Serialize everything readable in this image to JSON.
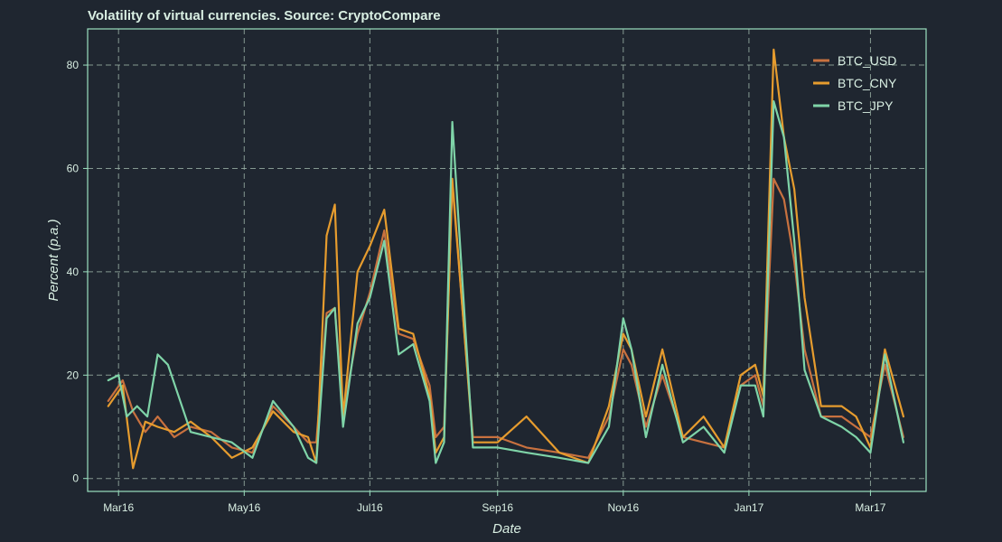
{
  "chart_data": {
    "type": "line",
    "title": "Volatility of virtual currencies. Source: CryptoCompare",
    "xlabel": "Date",
    "ylabel": "Percent (p.a.)",
    "ylim": [
      -2.5,
      87
    ],
    "xlim": [
      "2016-02-15",
      "2017-03-28"
    ],
    "grid": true,
    "legend_position": "top-right",
    "x_ticks": [
      {
        "date": "2016-03-01",
        "label": "Mar16"
      },
      {
        "date": "2016-05-01",
        "label": "May16"
      },
      {
        "date": "2016-07-01",
        "label": "Jul16"
      },
      {
        "date": "2016-09-01",
        "label": "Sep16"
      },
      {
        "date": "2016-11-01",
        "label": "Nov16"
      },
      {
        "date": "2017-01-01",
        "label": "Jan17"
      },
      {
        "date": "2017-03-01",
        "label": "Mar17"
      }
    ],
    "y_ticks": [
      0,
      20,
      40,
      60,
      80
    ],
    "series": [
      {
        "name": "BTC_USD",
        "color": "#c8713f",
        "x": [
          "2016-02-25",
          "2016-03-03",
          "2016-03-08",
          "2016-03-14",
          "2016-03-20",
          "2016-03-28",
          "2016-04-05",
          "2016-04-15",
          "2016-04-25",
          "2016-05-05",
          "2016-05-15",
          "2016-05-25",
          "2016-06-01",
          "2016-06-05",
          "2016-06-10",
          "2016-06-14",
          "2016-06-18",
          "2016-06-25",
          "2016-07-01",
          "2016-07-08",
          "2016-07-15",
          "2016-07-22",
          "2016-07-30",
          "2016-08-02",
          "2016-08-06",
          "2016-08-10",
          "2016-08-20",
          "2016-09-01",
          "2016-09-15",
          "2016-10-01",
          "2016-10-15",
          "2016-10-25",
          "2016-11-01",
          "2016-11-05",
          "2016-11-12",
          "2016-11-20",
          "2016-11-30",
          "2016-12-10",
          "2016-12-20",
          "2016-12-28",
          "2017-01-04",
          "2017-01-08",
          "2017-01-13",
          "2017-01-18",
          "2017-01-23",
          "2017-01-28",
          "2017-02-05",
          "2017-02-15",
          "2017-02-22",
          "2017-03-01",
          "2017-03-08",
          "2017-03-17"
        ],
        "values": [
          15,
          19,
          13,
          9,
          12,
          8,
          10,
          9,
          6,
          5,
          14,
          10,
          7,
          7,
          32,
          33,
          13,
          28,
          36,
          48,
          28,
          27,
          18,
          8,
          10,
          57,
          8,
          8,
          6,
          5,
          4,
          12,
          25,
          22,
          10,
          20,
          8,
          7,
          6,
          18,
          20,
          14,
          58,
          54,
          42,
          25,
          12,
          12,
          10,
          8,
          22,
          8
        ]
      },
      {
        "name": "BTC_CNY",
        "color": "#e69c2e",
        "x": [
          "2016-02-25",
          "2016-03-03",
          "2016-03-08",
          "2016-03-14",
          "2016-03-20",
          "2016-03-28",
          "2016-04-05",
          "2016-04-15",
          "2016-04-25",
          "2016-05-05",
          "2016-05-15",
          "2016-05-25",
          "2016-06-01",
          "2016-06-05",
          "2016-06-10",
          "2016-06-14",
          "2016-06-18",
          "2016-06-25",
          "2016-07-01",
          "2016-07-08",
          "2016-07-15",
          "2016-07-22",
          "2016-07-30",
          "2016-08-02",
          "2016-08-06",
          "2016-08-10",
          "2016-08-20",
          "2016-09-01",
          "2016-09-15",
          "2016-10-01",
          "2016-10-15",
          "2016-10-25",
          "2016-11-01",
          "2016-11-05",
          "2016-11-12",
          "2016-11-20",
          "2016-11-30",
          "2016-12-10",
          "2016-12-20",
          "2016-12-28",
          "2017-01-04",
          "2017-01-08",
          "2017-01-13",
          "2017-01-18",
          "2017-01-23",
          "2017-01-28",
          "2017-02-05",
          "2017-02-15",
          "2017-02-22",
          "2017-03-01",
          "2017-03-08",
          "2017-03-17"
        ],
        "values": [
          14,
          18,
          2,
          11,
          10,
          9,
          11,
          8,
          4,
          6,
          13,
          9,
          8,
          3,
          47,
          53,
          12,
          40,
          45,
          52,
          29,
          28,
          16,
          5,
          8,
          58,
          7,
          7,
          12,
          5,
          3,
          14,
          28,
          25,
          12,
          25,
          8,
          12,
          6,
          20,
          22,
          16,
          83,
          66,
          56,
          35,
          14,
          14,
          12,
          6,
          25,
          12
        ]
      },
      {
        "name": "BTC_JPY",
        "color": "#7fd4a8",
        "x": [
          "2016-02-25",
          "2016-03-01",
          "2016-03-05",
          "2016-03-10",
          "2016-03-15",
          "2016-03-20",
          "2016-03-25",
          "2016-04-05",
          "2016-04-15",
          "2016-04-25",
          "2016-05-05",
          "2016-05-15",
          "2016-05-25",
          "2016-06-01",
          "2016-06-05",
          "2016-06-10",
          "2016-06-14",
          "2016-06-18",
          "2016-06-25",
          "2016-07-01",
          "2016-07-08",
          "2016-07-15",
          "2016-07-22",
          "2016-07-30",
          "2016-08-02",
          "2016-08-06",
          "2016-08-10",
          "2016-08-20",
          "2016-09-01",
          "2016-09-15",
          "2016-10-01",
          "2016-10-15",
          "2016-10-25",
          "2016-11-01",
          "2016-11-05",
          "2016-11-12",
          "2016-11-20",
          "2016-11-30",
          "2016-12-10",
          "2016-12-20",
          "2016-12-28",
          "2017-01-04",
          "2017-01-08",
          "2017-01-13",
          "2017-01-18",
          "2017-01-23",
          "2017-01-28",
          "2017-02-05",
          "2017-02-15",
          "2017-02-22",
          "2017-03-01",
          "2017-03-08",
          "2017-03-17"
        ],
        "values": [
          19,
          20,
          12,
          14,
          12,
          24,
          22,
          9,
          8,
          7,
          4,
          15,
          10,
          4,
          3,
          31,
          33,
          10,
          30,
          35,
          46,
          24,
          26,
          15,
          3,
          7,
          69,
          6,
          6,
          5,
          4,
          3,
          10,
          31,
          25,
          8,
          22,
          7,
          10,
          5,
          18,
          18,
          12,
          73,
          66,
          46,
          21,
          12,
          10,
          8,
          5,
          24,
          7
        ]
      }
    ]
  }
}
